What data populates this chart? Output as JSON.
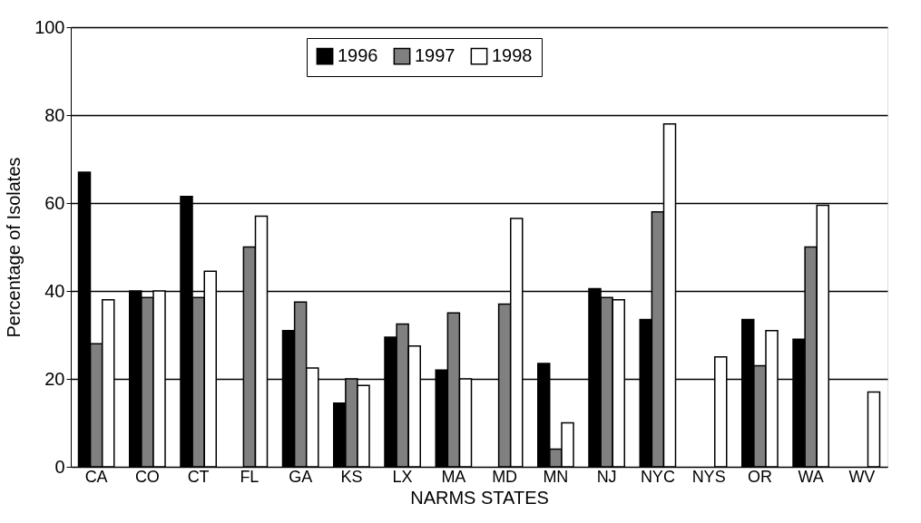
{
  "chart_data": {
    "type": "bar",
    "xlabel": "NARMS STATES",
    "ylabel": "Percentage of Isolates",
    "categories": [
      "CA",
      "CO",
      "CT",
      "FL",
      "GA",
      "KS",
      "LX",
      "MA",
      "MD",
      "MN",
      "NJ",
      "NYC",
      "NYS",
      "OR",
      "WA",
      "WV"
    ],
    "series": [
      {
        "name": "1996",
        "color": "#000000",
        "values": [
          67,
          40,
          61.5,
          null,
          31,
          14.5,
          29.5,
          22,
          null,
          23.5,
          40.5,
          33.5,
          null,
          33.5,
          29,
          null
        ]
      },
      {
        "name": "1997",
        "color": "#808080",
        "values": [
          28,
          38.5,
          38.5,
          50,
          37.5,
          20,
          32.5,
          35,
          37,
          4,
          38.5,
          58,
          null,
          23,
          50,
          null
        ]
      },
      {
        "name": "1998",
        "color": "#ffffff",
        "values": [
          38,
          40,
          44.5,
          57,
          22.5,
          18.5,
          27.5,
          20,
          56.5,
          10,
          38,
          78,
          25,
          31,
          59.5,
          17
        ]
      }
    ],
    "ylim": [
      0,
      100
    ],
    "yticks": [
      0,
      20,
      40,
      60,
      80,
      100
    ],
    "grid": "y",
    "legend": "top"
  }
}
